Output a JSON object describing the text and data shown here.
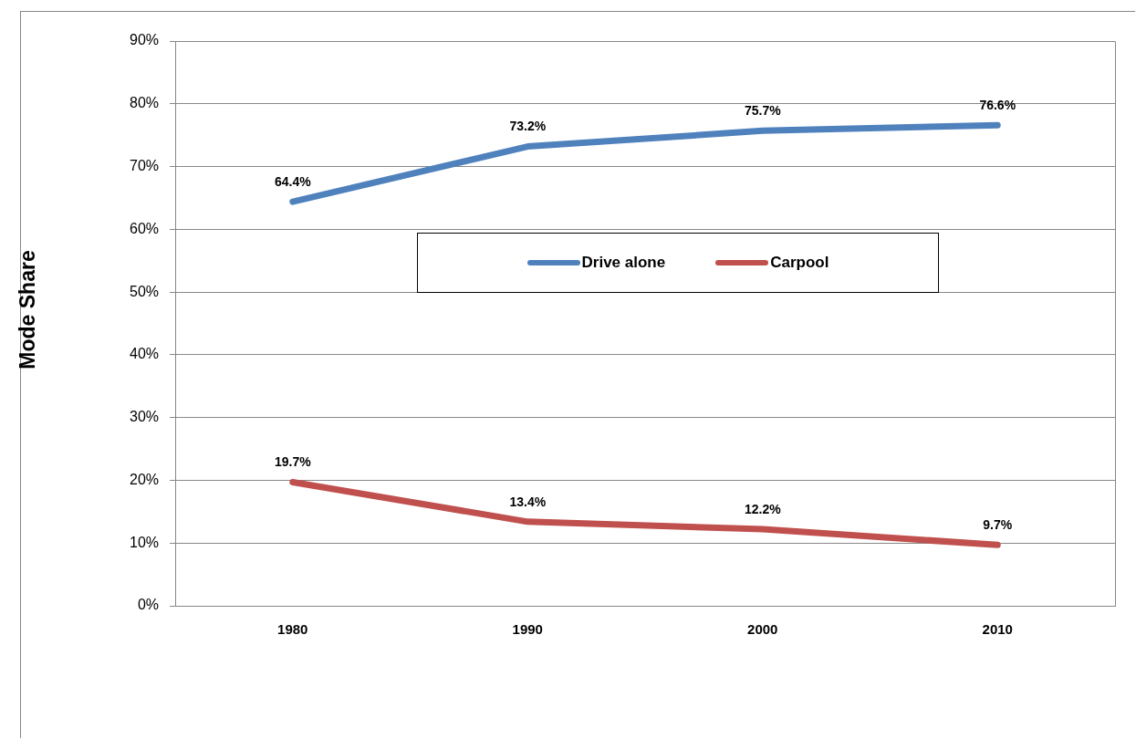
{
  "chart_data": {
    "type": "line",
    "ylabel": "Mode Share",
    "categories": [
      "1980",
      "1990",
      "2000",
      "2010"
    ],
    "series": [
      {
        "name": "Drive alone",
        "color": "#4f81bd",
        "values": [
          64.4,
          73.2,
          75.7,
          76.6
        ],
        "value_labels": [
          "64.4%",
          "73.2%",
          "75.7%",
          "76.6%"
        ]
      },
      {
        "name": "Carpool",
        "color": "#c0504d",
        "values": [
          19.7,
          13.4,
          12.2,
          9.7
        ],
        "value_labels": [
          "19.7%",
          "13.4%",
          "12.2%",
          "9.7%"
        ]
      }
    ],
    "ylim": [
      0,
      90
    ],
    "yticks": [
      {
        "value": 0,
        "label": "0%"
      },
      {
        "value": 10,
        "label": "10%"
      },
      {
        "value": 20,
        "label": "20%"
      },
      {
        "value": 30,
        "label": "30%"
      },
      {
        "value": 40,
        "label": "40%"
      },
      {
        "value": 50,
        "label": "50%"
      },
      {
        "value": 60,
        "label": "60%"
      },
      {
        "value": 70,
        "label": "70%"
      },
      {
        "value": 80,
        "label": "80%"
      },
      {
        "value": 90,
        "label": "90%"
      }
    ],
    "grid": "y",
    "legend": "center",
    "marker": "none",
    "line_style": "solid"
  }
}
